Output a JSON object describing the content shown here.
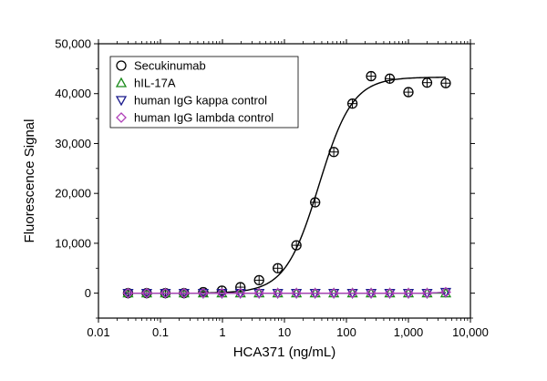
{
  "chart_data": {
    "type": "scatter",
    "title": "",
    "xlabel": "HCA371 (ng/mL)",
    "ylabel": "Fluorescence Signal",
    "xscale": "log",
    "xlim": [
      0.01,
      10000
    ],
    "ylim": [
      -5000,
      50000
    ],
    "xticks": [
      0.01,
      0.1,
      1,
      10,
      100,
      1000,
      10000
    ],
    "xtick_labels": [
      "0.01",
      "0.1",
      "1",
      "10",
      "100",
      "1,000",
      "10,000"
    ],
    "yticks": [
      0,
      10000,
      20000,
      30000,
      40000,
      50000
    ],
    "ytick_labels": [
      "0",
      "10,000",
      "20,000",
      "30,000",
      "40,000",
      "50,000"
    ],
    "grid": false,
    "legend_position": "top-left",
    "x": [
      0.03,
      0.06,
      0.12,
      0.24,
      0.49,
      0.98,
      1.95,
      3.9,
      7.8,
      15.6,
      31.3,
      62.5,
      125,
      250,
      500,
      1000,
      2000,
      4000
    ],
    "series": [
      {
        "name": "Secukinumab",
        "marker": "circle",
        "color": "#000000",
        "values": [
          0,
          0,
          0,
          0,
          200,
          500,
          1200,
          2600,
          5000,
          9600,
          18200,
          28300,
          38000,
          43500,
          43000,
          40300,
          42200,
          42100
        ],
        "fit": {
          "model": "4PL",
          "bottom": 0,
          "top": 43300,
          "ec50": 36,
          "hill": 1.6
        }
      },
      {
        "name": "hIL-17A",
        "marker": "triangle-up",
        "color": "#1a8a1a",
        "values": [
          0,
          0,
          0,
          0,
          0,
          0,
          0,
          0,
          0,
          0,
          0,
          0,
          0,
          0,
          0,
          0,
          0,
          0
        ]
      },
      {
        "name": "human IgG kappa control",
        "marker": "triangle-down",
        "color": "#1a1a8c",
        "values": [
          0,
          0,
          0,
          0,
          0,
          0,
          0,
          0,
          0,
          0,
          0,
          0,
          0,
          0,
          0,
          0,
          0,
          200
        ]
      },
      {
        "name": "human IgG lambda control",
        "marker": "diamond",
        "color": "#b040b8",
        "values": [
          0,
          0,
          0,
          0,
          0,
          0,
          0,
          0,
          0,
          0,
          0,
          0,
          0,
          0,
          0,
          0,
          0,
          200
        ]
      }
    ]
  }
}
